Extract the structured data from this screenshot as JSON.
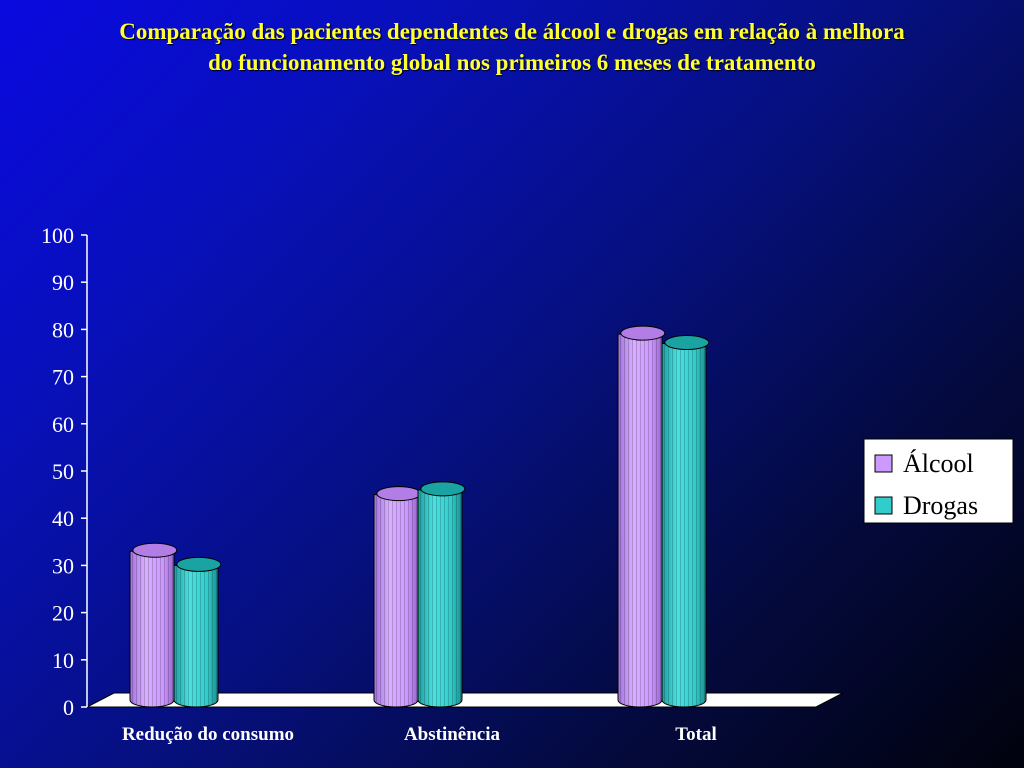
{
  "chart_data": {
    "type": "bar",
    "title_lines": [
      "Comparação das pacientes dependentes de álcool e drogas em relação à melhora",
      "do funcionamento global nos primeiros 6 meses de tratamento"
    ],
    "categories": [
      "Redução do consumo",
      "Abstinência",
      "Total"
    ],
    "series": [
      {
        "name": "Álcool",
        "values": [
          33,
          45,
          79
        ],
        "color": "#cc99ff",
        "top_color": "#b27ee6"
      },
      {
        "name": "Drogas",
        "values": [
          30,
          46,
          77
        ],
        "color": "#33cccc",
        "top_color": "#1aa3a3"
      }
    ],
    "ylim": [
      0,
      100
    ],
    "yticks": [
      0,
      10,
      20,
      30,
      40,
      50,
      60,
      70,
      80,
      90,
      100
    ],
    "grid": false,
    "legend_position": "right"
  }
}
